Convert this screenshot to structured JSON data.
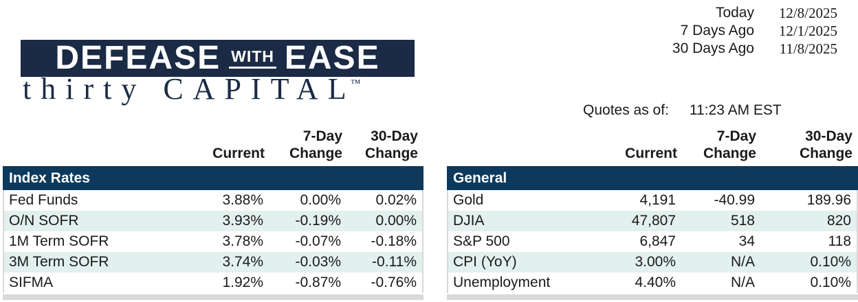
{
  "dates": {
    "rows": [
      {
        "label": "Today",
        "value": "12/8/2025"
      },
      {
        "label": "7 Days Ago",
        "value": "12/1/2025"
      },
      {
        "label": "30 Days Ago",
        "value": "11/8/2025"
      }
    ]
  },
  "logo": {
    "word1": "DEFEASE",
    "word2": "WITH",
    "word3": "EASE",
    "tagline": "thirty CAPITAL",
    "trademark": "™"
  },
  "quotes": {
    "label": "Quotes as of:",
    "time": "11:23 AM EST"
  },
  "column_headers": {
    "current_top": "",
    "current_bottom": "Current",
    "d7_top": "7-Day",
    "d7_bottom": "Change",
    "d30_top": "30-Day",
    "d30_bottom": "Change"
  },
  "index_rates": {
    "title": "Index Rates",
    "rows": [
      {
        "label": "Fed Funds",
        "current": "3.88%",
        "change7": "0.00%",
        "change30": "0.02%"
      },
      {
        "label": "O/N SOFR",
        "current": "3.93%",
        "change7": "-0.19%",
        "change30": "0.00%"
      },
      {
        "label": "1M Term SOFR",
        "current": "3.78%",
        "change7": "-0.07%",
        "change30": "-0.18%"
      },
      {
        "label": "3M Term SOFR",
        "current": "3.74%",
        "change7": "-0.03%",
        "change30": "-0.11%"
      },
      {
        "label": "SIFMA",
        "current": "1.92%",
        "change7": "-0.87%",
        "change30": "-0.76%"
      }
    ]
  },
  "general": {
    "title": "General",
    "rows": [
      {
        "label": "Gold",
        "current": "4,191",
        "change7": "-40.99",
        "change30": "189.96"
      },
      {
        "label": "DJIA",
        "current": "47,807",
        "change7": "518",
        "change30": "820"
      },
      {
        "label": "S&P 500",
        "current": "6,847",
        "change7": "34",
        "change30": "118"
      },
      {
        "label": "CPI (YoY)",
        "current": "3.00%",
        "change7": "N/A",
        "change30": "0.10%"
      },
      {
        "label": "Unemployment",
        "current": "4.40%",
        "change7": "N/A",
        "change30": "0.10%"
      }
    ]
  },
  "colors": {
    "section_bar_navy": "#0d3a5c",
    "logo_navy": "#1b2a45",
    "row_tint": "#e2f0ee",
    "border_gray": "#d9d9d9"
  }
}
